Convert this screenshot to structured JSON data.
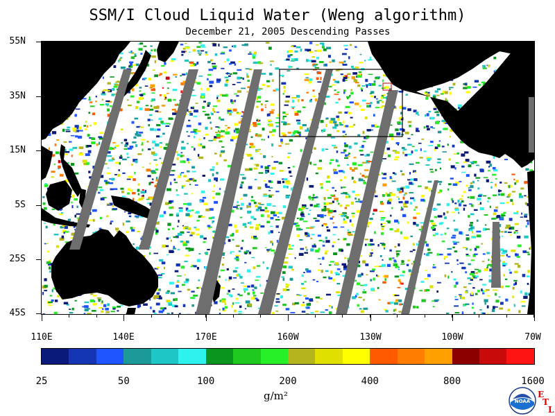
{
  "header": {
    "title": "SSM/I Cloud Liquid Water (Weng algorithm)",
    "subtitle": "December 21, 2005  Descending Passes"
  },
  "map": {
    "lat_labels": [
      "55N",
      "35N",
      "15N",
      "5S",
      "25S",
      "45S"
    ],
    "lon_labels": [
      "110E",
      "140E",
      "170E",
      "160W",
      "130W",
      "100W",
      "70W"
    ],
    "colors": {
      "land": "#000000",
      "missing_swath_gap": "#6e6e6e",
      "clear": "#ffffff"
    }
  },
  "colorbar": {
    "colors": [
      "#0a1a7a",
      "#1436b4",
      "#1e55ff",
      "#1c9a9a",
      "#1ec6c6",
      "#2ef2ee",
      "#0a961e",
      "#1ec81e",
      "#28f028",
      "#b4b41e",
      "#e0e000",
      "#ffff00",
      "#ff5a00",
      "#ff7d00",
      "#ffa000",
      "#8c0000",
      "#c80a0a",
      "#ff1414"
    ],
    "tick_labels": [
      "25",
      "50",
      "100",
      "200",
      "400",
      "800",
      "1600"
    ],
    "unit": "g/m²"
  },
  "logos": {
    "noaa": "NOAA",
    "etl_letters": [
      "E",
      "T",
      "L"
    ]
  }
}
